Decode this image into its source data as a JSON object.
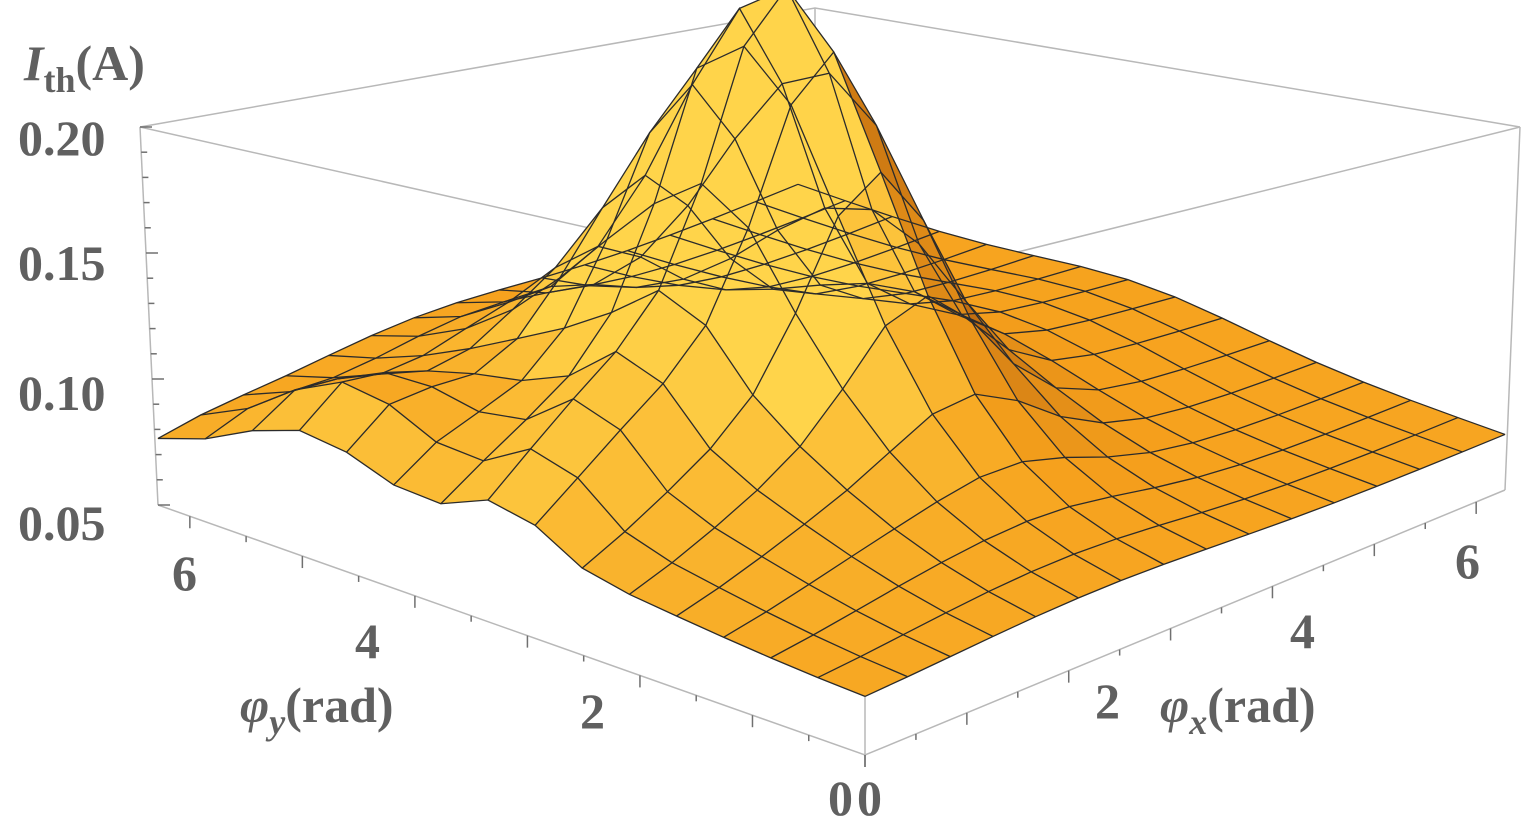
{
  "chart_data": {
    "type": "surface3d",
    "x_axis": {
      "symbol": "φ",
      "subscript": "x",
      "unit": "(rad)",
      "range": [
        0,
        6.283
      ],
      "ticks": [
        0,
        2,
        4,
        6
      ]
    },
    "y_axis": {
      "symbol": "φ",
      "subscript": "y",
      "unit": "(rad)",
      "range": [
        0,
        6.283
      ],
      "ticks": [
        0,
        2,
        4,
        6
      ]
    },
    "z_axis": {
      "symbol": "I",
      "subscript": "th",
      "unit": "(A)",
      "range": [
        0.05,
        0.2
      ],
      "ticks": [
        "0.05",
        "0.10",
        "0.15",
        "0.20"
      ]
    },
    "x_tick_labels": [
      "0",
      "2",
      "4",
      "6"
    ],
    "y_tick_labels": [
      "0",
      "2",
      "4",
      "6"
    ],
    "surface": {
      "grid": [
        15,
        15
      ],
      "baseline": 0.07,
      "features": [
        {
          "name": "peak",
          "phi_x": 2.9,
          "phi_y": 3.5,
          "height": 0.2
        },
        {
          "name": "ridge",
          "along": "phi_y",
          "phi_y": 3.2,
          "height": 0.16
        },
        {
          "name": "bump",
          "phi_x": 0.4,
          "phi_y": 5.0,
          "height": 0.1
        }
      ]
    },
    "colors": {
      "surface_light": "#ffd24a",
      "surface_mid": "#f6a01c",
      "surface_dark": "#b8650e",
      "mesh": "#2b2b2b",
      "box": "#b8b8b8",
      "text": "#606060"
    }
  }
}
